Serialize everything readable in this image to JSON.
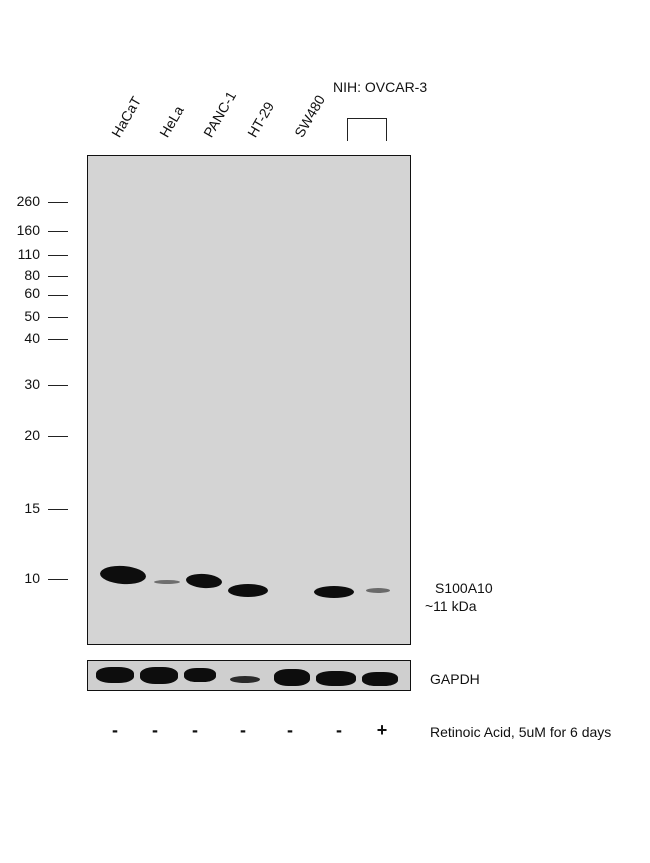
{
  "lanes": [
    "HaCaT",
    "HeLa",
    "PANC-1",
    "HT-29",
    "SW480"
  ],
  "group_label": "NIH: OVCAR-3",
  "mw_markers": [
    "260",
    "160",
    "110",
    "80",
    "60",
    "50",
    "40",
    "30",
    "20",
    "15",
    "10"
  ],
  "target": {
    "name": "S100A10",
    "size": "~11 kDa"
  },
  "loading_control": "GAPDH",
  "treatment": {
    "signs": [
      "-",
      "-",
      "-",
      "-",
      "-",
      "-",
      "+"
    ],
    "label": "Retinoic Acid, 5uM for 6 days"
  }
}
